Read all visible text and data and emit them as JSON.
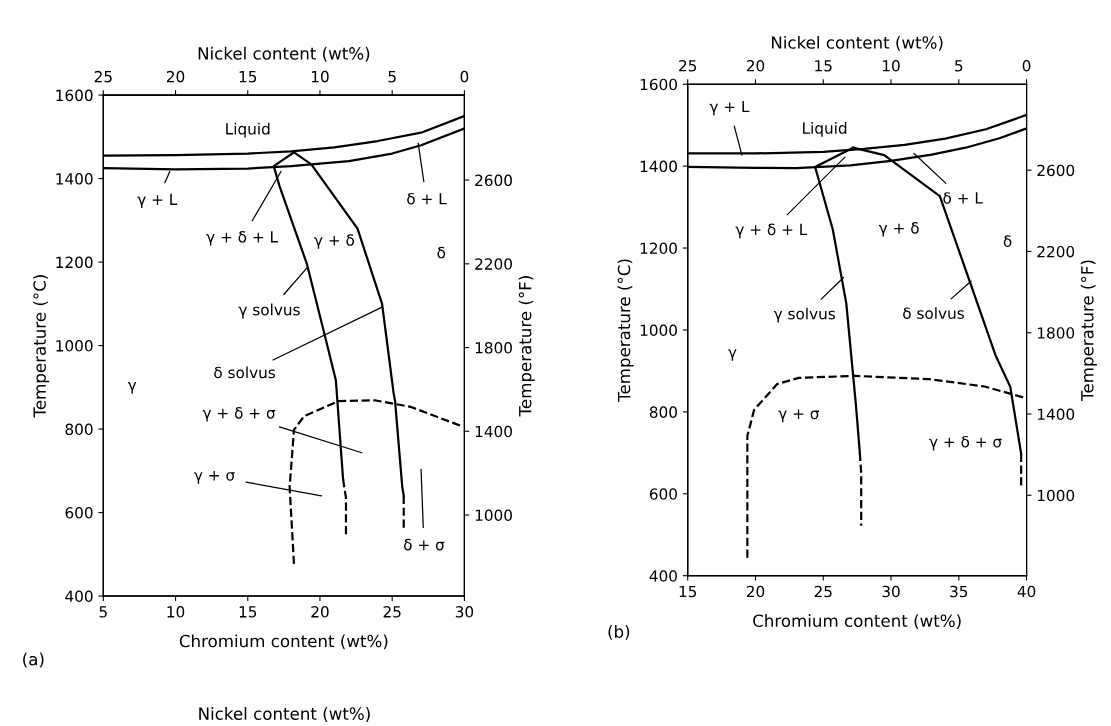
{
  "chart_data": [
    {
      "type": "line",
      "xlabel": "Chromium content (wt%)",
      "ylabel": "Temperature (°C)",
      "y2label": "Temperature (°F)",
      "x2label": "Nickel content (wt%)",
      "xlim": [
        5,
        30
      ],
      "xticks": [
        5,
        10,
        15,
        20,
        25,
        30
      ],
      "ylim": [
        400,
        1600
      ],
      "yticks": [
        400,
        600,
        800,
        1000,
        1200,
        1400,
        1600
      ],
      "y2lim": [
        613,
        3006
      ],
      "y2ticks": [
        1000,
        1400,
        1800,
        2200,
        2600
      ],
      "x2lim": [
        25,
        0
      ],
      "x2ticks": [
        25,
        20,
        15,
        10,
        5,
        0
      ],
      "series": [
        {
          "color": "#000000",
          "line_style": "solid",
          "x": [
            5,
            10,
            15,
            18,
            21,
            24,
            27,
            30
          ],
          "values": [
            1455,
            1456,
            1460,
            1465,
            1475,
            1490,
            1510,
            1550
          ]
        },
        {
          "color": "#000000",
          "line_style": "solid",
          "x": [
            5,
            10,
            15,
            18,
            22,
            25,
            27,
            30
          ],
          "values": [
            1425,
            1422,
            1424,
            1430,
            1442,
            1460,
            1480,
            1520
          ]
        },
        {
          "color": "#000000",
          "line_style": "solid",
          "x": [
            18.2,
            16.8,
            17.2,
            19.1,
            20.4,
            21.1,
            21.6
          ],
          "values": [
            1463,
            1430,
            1382,
            1195,
            1015,
            917,
            680
          ]
        },
        {
          "color": "#000000",
          "line_style": "dashed",
          "x": [
            21.6,
            21.8,
            21.8
          ],
          "values": [
            680,
            635,
            541
          ]
        },
        {
          "color": "#000000",
          "line_style": "solid",
          "x": [
            18.2,
            19.4,
            22.6,
            24.3,
            25.1,
            25.2,
            25.7,
            25.8
          ],
          "values": [
            1463,
            1434,
            1280,
            1100,
            886,
            867,
            661,
            640
          ]
        },
        {
          "color": "#000000",
          "line_style": "dashed",
          "x": [
            25.8,
            25.8
          ],
          "values": [
            640,
            563
          ]
        },
        {
          "color": "#000000",
          "line_style": "dashed",
          "x": [
            18.2,
            17.9,
            18.2,
            18.9,
            21.3,
            23.8,
            26.3,
            29.8
          ],
          "values": [
            477,
            661,
            798,
            831,
            867,
            869,
            853,
            807
          ]
        }
      ],
      "annotations": [
        "Liquid",
        {
          "text": "γ + L",
          "x": 9.6,
          "y": 1417
        },
        {
          "text": "γ + δ + L",
          "x": 17.3,
          "y": 1417
        },
        {
          "text": "δ + L",
          "x": 26.8,
          "y": 1485
        },
        "γ + δ",
        "δ",
        {
          "text": "γ solvus",
          "x": 19.1,
          "y": 1186
        },
        {
          "text": "δ solvus",
          "x": 24.3,
          "y": 1092
        },
        "γ",
        "γ + δ + σ",
        "γ + σ",
        "δ + σ",
        "(a)",
        "Nickel content (wt%)"
      ]
    },
    {
      "type": "line",
      "xlabel": "Chromium content (wt%)",
      "ylabel": "Temperature (°C)",
      "y2label": "Temperature (°F)",
      "x2label": "Nickel content (wt%)",
      "xlim": [
        15,
        40
      ],
      "xticks": [
        15,
        20,
        25,
        30,
        35,
        40
      ],
      "ylim": [
        400,
        1600
      ],
      "yticks": [
        400,
        600,
        800,
        1000,
        1200,
        1400,
        1600
      ],
      "y2lim": [
        604,
        3023
      ],
      "y2ticks": [
        1000,
        1400,
        1800,
        2200,
        2600
      ],
      "x2lim": [
        25,
        0
      ],
      "x2ticks": [
        25,
        20,
        15,
        10,
        5,
        0
      ],
      "series": [
        {
          "color": "#000000",
          "line_style": "solid",
          "x": [
            15,
            20,
            25,
            28,
            31,
            34,
            37,
            40
          ],
          "values": [
            1431,
            1431,
            1435,
            1442,
            1452,
            1467,
            1490,
            1525
          ]
        },
        {
          "color": "#000000",
          "line_style": "solid",
          "x": [
            15,
            20,
            23,
            27,
            30,
            33,
            35.5,
            38,
            40
          ],
          "values": [
            1398,
            1396,
            1395,
            1402,
            1413,
            1428,
            1445,
            1468,
            1492
          ]
        },
        {
          "color": "#000000",
          "line_style": "solid",
          "x": [
            27.2,
            24.4,
            25.7,
            26.7,
            27.4,
            27.7
          ],
          "values": [
            1445,
            1398,
            1246,
            1065,
            821,
            700
          ]
        },
        {
          "color": "#000000",
          "line_style": "dashed",
          "x": [
            27.7,
            27.8,
            27.8
          ],
          "values": [
            700,
            650,
            522
          ]
        },
        {
          "color": "#000000",
          "line_style": "solid",
          "x": [
            27.2,
            29.5,
            33.6,
            35.8,
            37.7,
            38.8,
            39.6
          ],
          "values": [
            1445,
            1427,
            1327,
            1119,
            939,
            861,
            698
          ]
        },
        {
          "color": "#000000",
          "line_style": "dashed",
          "x": [
            39.6,
            39.6
          ],
          "values": [
            698,
            617
          ]
        },
        {
          "color": "#000000",
          "line_style": "dashed",
          "x": [
            19.4,
            19.4,
            19.9,
            21.6,
            23.2,
            27.3,
            32.8,
            36.9,
            39.9
          ],
          "values": [
            444,
            741,
            805,
            868,
            883,
            888,
            880,
            862,
            834
          ]
        }
      ],
      "annotations": [
        {
          "text": "γ + L",
          "x": 19.0,
          "y": 1427
        },
        "Liquid",
        {
          "text": "γ + δ + L",
          "x": 26.6,
          "y": 1422
        },
        {
          "text": "δ + L",
          "x": 31.7,
          "y": 1431
        },
        "γ + δ",
        "δ",
        {
          "text": "γ solvus",
          "x": 26.5,
          "y": 1128
        },
        {
          "text": "δ solvus",
          "x": 35.9,
          "y": 1119
        },
        "γ",
        "γ + σ",
        "γ + δ + σ",
        "(b)"
      ]
    }
  ]
}
